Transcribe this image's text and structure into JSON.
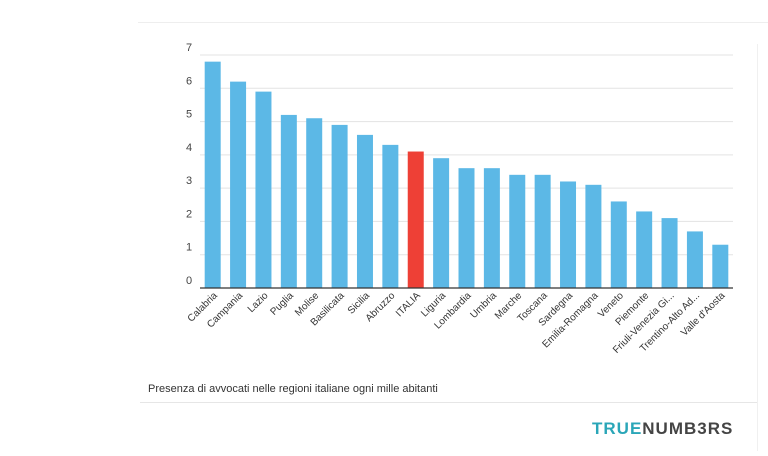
{
  "brand": {
    "part1": "TRUE",
    "part2": "NUMB3RS",
    "accent": "#2aa6b8"
  },
  "chart_data": {
    "type": "bar",
    "caption": "Presenza di avvocati nelle regioni italiane ogni mille abitanti",
    "categories": [
      "Calabria",
      "Campania",
      "Lazio",
      "Puglia",
      "Molise",
      "Basilicata",
      "Sicilia",
      "Abruzzo",
      "ITALIA",
      "Liguria",
      "Lombardia",
      "Umbria",
      "Marche",
      "Toscana",
      "Sardegna",
      "Emilia-Romagna",
      "Veneto",
      "Piemonte",
      "Friuli-Venezia Gi...",
      "Trentino-Alto Ad...",
      "Valle d'Aosta"
    ],
    "values": [
      6.8,
      6.2,
      5.9,
      5.2,
      5.1,
      4.9,
      4.6,
      4.3,
      4.1,
      3.9,
      3.6,
      3.6,
      3.4,
      3.4,
      3.2,
      3.1,
      2.6,
      2.3,
      2.1,
      1.7,
      1.3
    ],
    "highlight": "ITALIA",
    "colors": {
      "bar": "#5cb8e6",
      "highlight": "#ee4036",
      "grid": "#e3e3e3",
      "axis": "#333333"
    },
    "ylim": [
      0,
      7
    ],
    "yticks": [
      "0",
      "1",
      "2",
      "3",
      "4",
      "5",
      "6",
      "7"
    ],
    "xlabel": "",
    "ylabel": "",
    "grid": true
  }
}
